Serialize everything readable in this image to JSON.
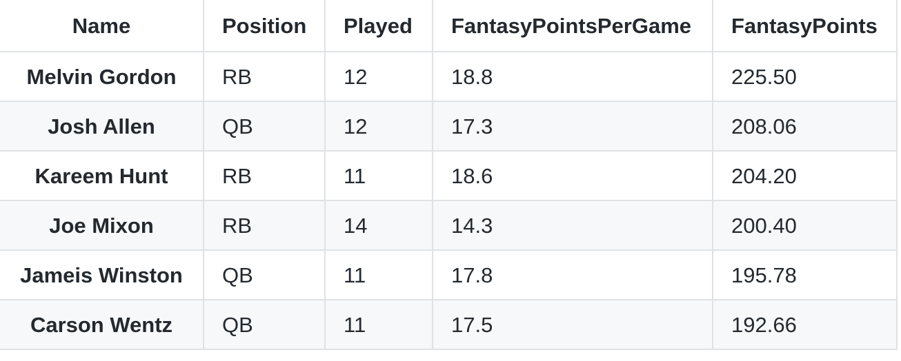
{
  "table": {
    "headers": [
      "Name",
      "Position",
      "Played",
      "FantasyPointsPerGame",
      "FantasyPoints"
    ],
    "rows": [
      [
        "Melvin Gordon",
        "RB",
        "12",
        "18.8",
        "225.50"
      ],
      [
        "Josh Allen",
        "QB",
        "12",
        "17.3",
        "208.06"
      ],
      [
        "Kareem Hunt",
        "RB",
        "11",
        "18.6",
        "204.20"
      ],
      [
        "Joe Mixon",
        "RB",
        "14",
        "14.3",
        "200.40"
      ],
      [
        "Jameis Winston",
        "QB",
        "11",
        "17.8",
        "195.78"
      ],
      [
        "Carson Wentz",
        "QB",
        "11",
        "17.5",
        "192.66"
      ]
    ]
  },
  "colors": {
    "border": "#dfe2e5",
    "stripe": "#f6f8fa",
    "text": "#24292e"
  }
}
